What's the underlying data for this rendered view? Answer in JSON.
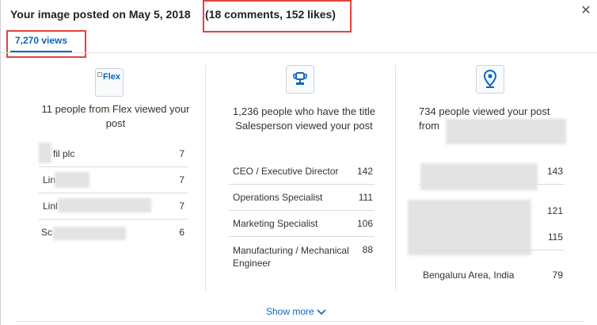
{
  "header": {
    "title": "Your image posted on May 5, 2018",
    "stats": "(18 comments, 152 likes)",
    "close_symbol": "✕"
  },
  "tabs": {
    "views_label": "7,270 views"
  },
  "columns": {
    "company": {
      "icon": "flex-logo-icon",
      "logo_text": "Flex",
      "heading": "11 people from Flex viewed your post",
      "rows": [
        {
          "label": "fil plc",
          "value": "7"
        },
        {
          "label": "Lin",
          "value": "7"
        },
        {
          "label": "Linl",
          "value": "7"
        },
        {
          "label": "Sc",
          "value": "6"
        }
      ]
    },
    "title": {
      "icon": "trophy-icon",
      "heading": "1,236 people who have the title Salesperson viewed your post",
      "rows": [
        {
          "label": "CEO / Executive Director",
          "value": "142"
        },
        {
          "label": "Operations Specialist",
          "value": "111"
        },
        {
          "label": "Marketing Specialist",
          "value": "106"
        },
        {
          "label": "Manufacturing / Mechanical Engineer",
          "value": "88"
        }
      ]
    },
    "location": {
      "icon": "location-pin-icon",
      "heading": "734 people viewed your post from",
      "rows": [
        {
          "label": "",
          "value": "143"
        },
        {
          "label": "",
          "value": "121"
        },
        {
          "label": "",
          "value": "115"
        },
        {
          "label": "Bengaluru Area, India",
          "value": "79"
        }
      ]
    }
  },
  "footer": {
    "show_more_label": "Show more"
  },
  "colors": {
    "accent": "#0a66c2",
    "highlight": "#e0443e"
  }
}
